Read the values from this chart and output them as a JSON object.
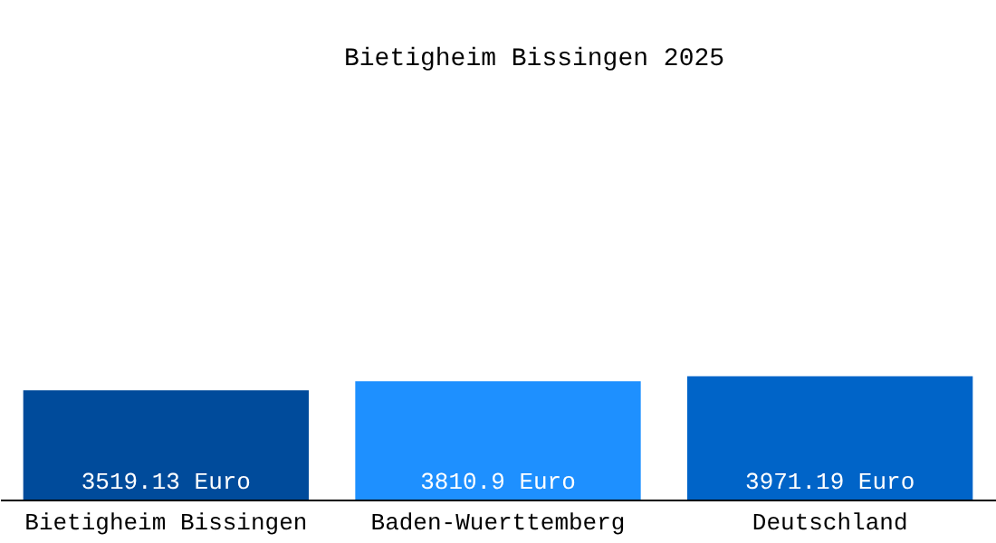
{
  "chart_data": {
    "type": "bar",
    "title": "Bietigheim Bissingen 2025",
    "categories": [
      "Bietigheim Bissingen",
      "Baden-Wuerttemberg",
      "Deutschland"
    ],
    "values": [
      3519.13,
      3810.9,
      3971.19
    ],
    "colors": [
      "#004b9b",
      "#1e90ff",
      "#0064c8"
    ],
    "value_labels": [
      "3519.13 Euro",
      "3810.9 Euro",
      "3971.19 Euro"
    ],
    "grid": false
  }
}
